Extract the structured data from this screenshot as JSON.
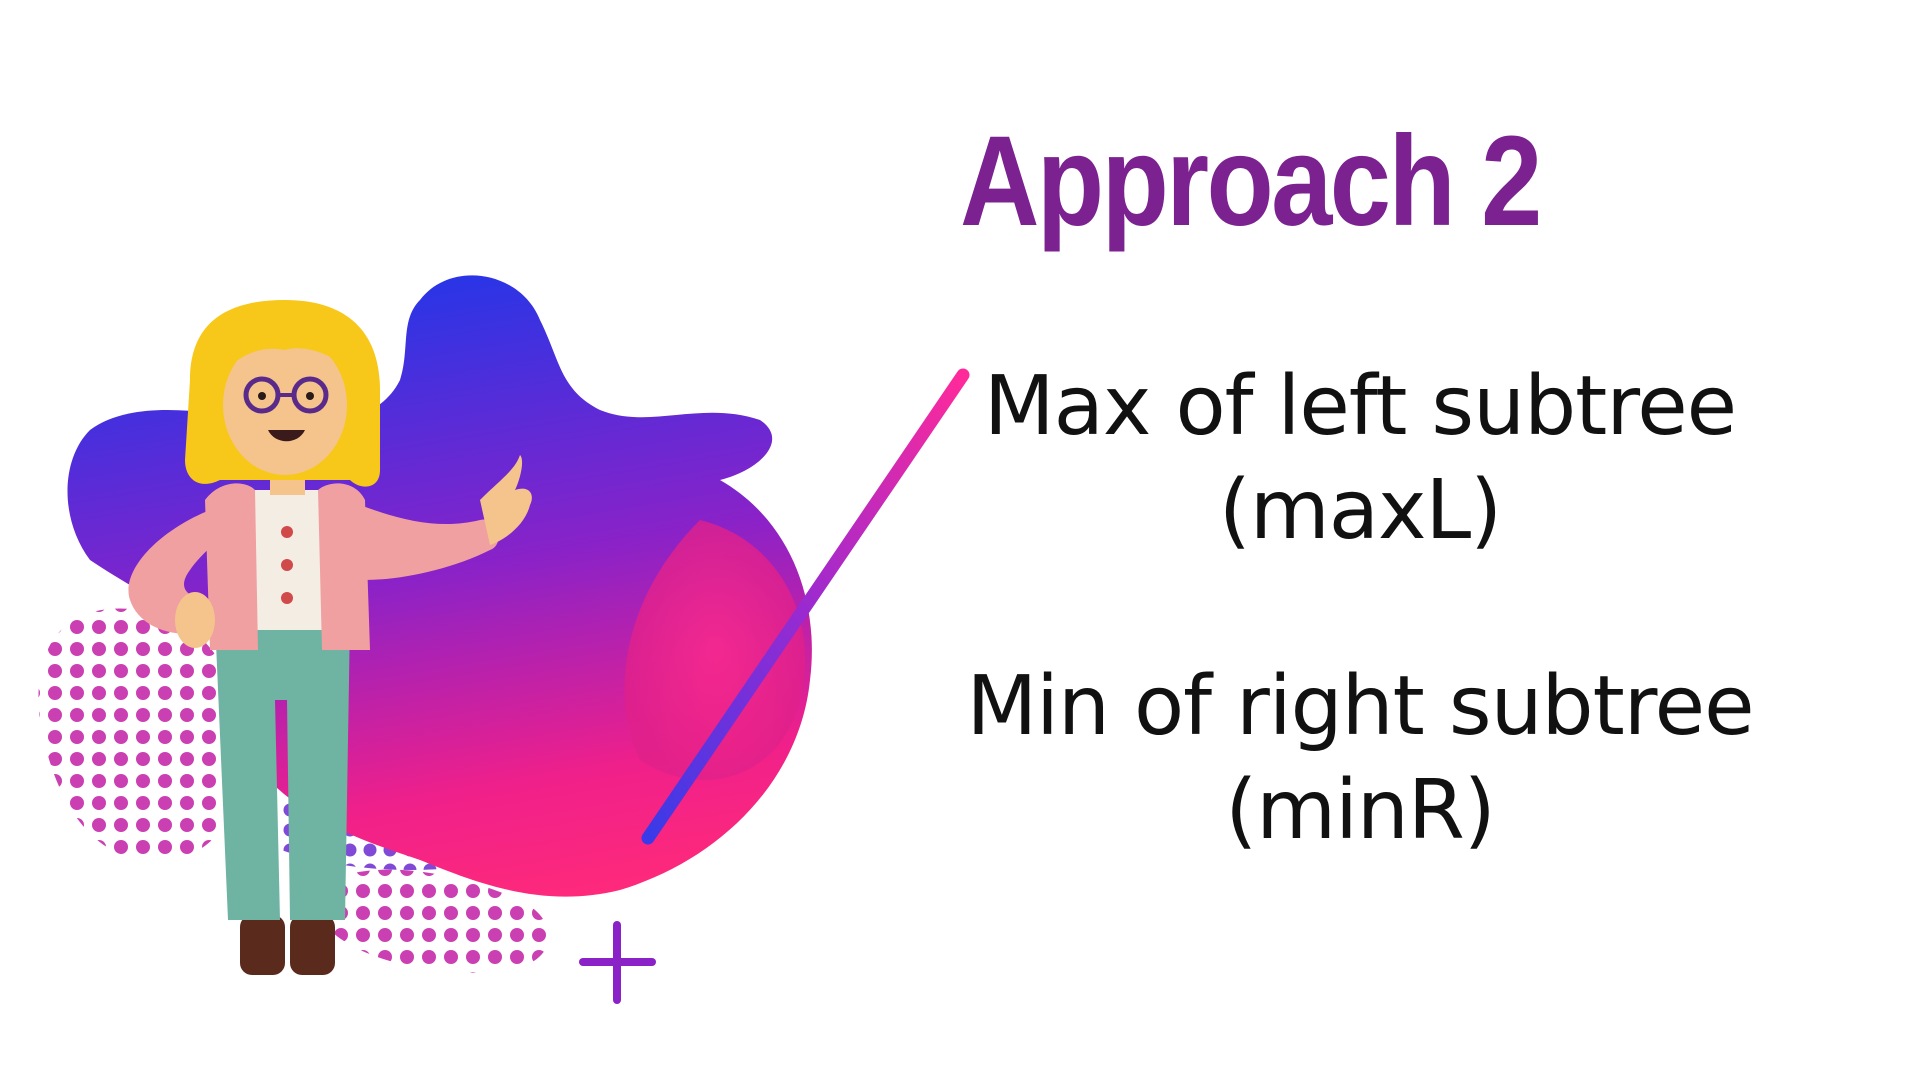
{
  "slide": {
    "title": "Approach 2",
    "points": [
      {
        "line1": "Max of left subtree",
        "line2": "(maxL)"
      },
      {
        "line1": "Min of right subtree",
        "line2": "(minR)"
      }
    ]
  },
  "colors": {
    "title": "#7b2290",
    "text": "#111111",
    "blob_blue": "#3a2fe0",
    "blob_purple": "#8a22c8",
    "blob_pink": "#f0208a",
    "dots": "#c42aa8",
    "character_hair": "#f7c81a",
    "character_jacket": "#f0a0a0",
    "character_pants": "#6fb3a3",
    "character_shoes": "#5a2a1c"
  },
  "icons": {
    "pointer_stick": "pointer-stick-icon",
    "plus": "plus-icon",
    "character": "presenter-character-icon",
    "blob": "gradient-blob-icon",
    "dots": "halftone-dots-icon"
  }
}
